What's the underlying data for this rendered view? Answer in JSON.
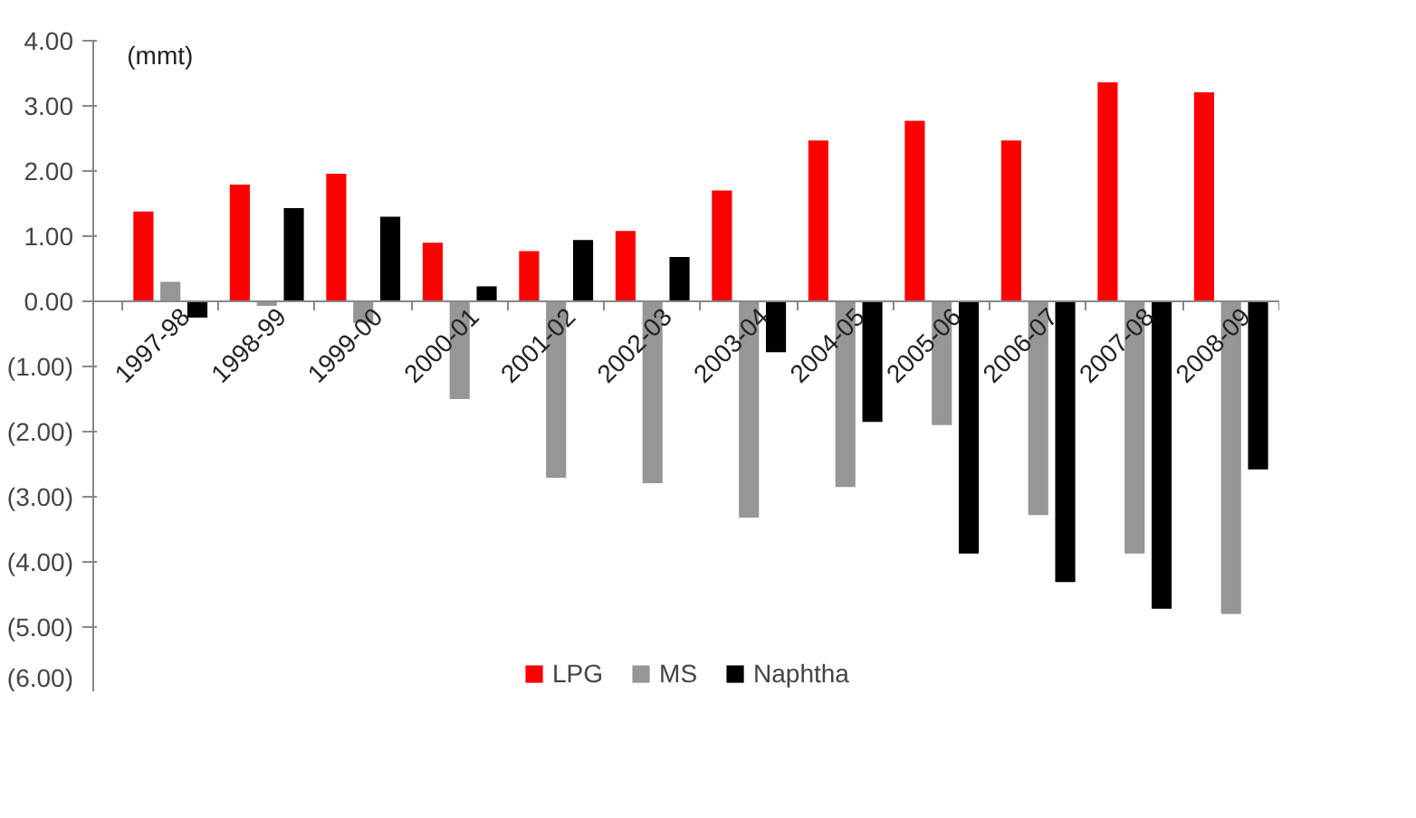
{
  "chart_data": {
    "type": "bar",
    "ylabel": "(mmt)",
    "categories": [
      "1997-98",
      "1998-99",
      "1999-00",
      "2000-01",
      "2001-02",
      "2002-03",
      "2003-04",
      "2004-05",
      "2005-06",
      "2006-07",
      "2007-08",
      "2008-09"
    ],
    "series": [
      {
        "name": "LPG",
        "color": "#ff0000",
        "values": [
          1.38,
          1.79,
          1.96,
          0.9,
          0.77,
          1.08,
          1.7,
          2.47,
          2.77,
          2.47,
          3.36,
          3.21
        ]
      },
      {
        "name": "MS",
        "color": "#969696",
        "values": [
          0.3,
          -0.07,
          -0.33,
          -1.5,
          -2.71,
          -2.79,
          -3.32,
          -2.85,
          -1.9,
          -3.28,
          -3.87,
          -4.8
        ]
      },
      {
        "name": "Naphtha",
        "color": "#000000",
        "values": [
          -0.25,
          1.43,
          1.3,
          0.23,
          0.94,
          0.68,
          -0.78,
          -1.85,
          -3.87,
          -4.31,
          -4.72,
          -2.58
        ]
      }
    ],
    "ylim": [
      -6,
      4
    ],
    "yticks": [
      {
        "value": -6,
        "label": "(6.00)"
      },
      {
        "value": -5,
        "label": "(5.00)"
      },
      {
        "value": -4,
        "label": "(4.00)"
      },
      {
        "value": -3,
        "label": "(3.00)"
      },
      {
        "value": -2,
        "label": "(2.00)"
      },
      {
        "value": -1,
        "label": "(1.00)"
      },
      {
        "value": 0,
        "label": "0.00"
      },
      {
        "value": 1,
        "label": "1.00"
      },
      {
        "value": 2,
        "label": "2.00"
      },
      {
        "value": 3,
        "label": "3.00"
      },
      {
        "value": 4,
        "label": "4.00"
      }
    ],
    "grid": false,
    "legend": "bottom"
  }
}
